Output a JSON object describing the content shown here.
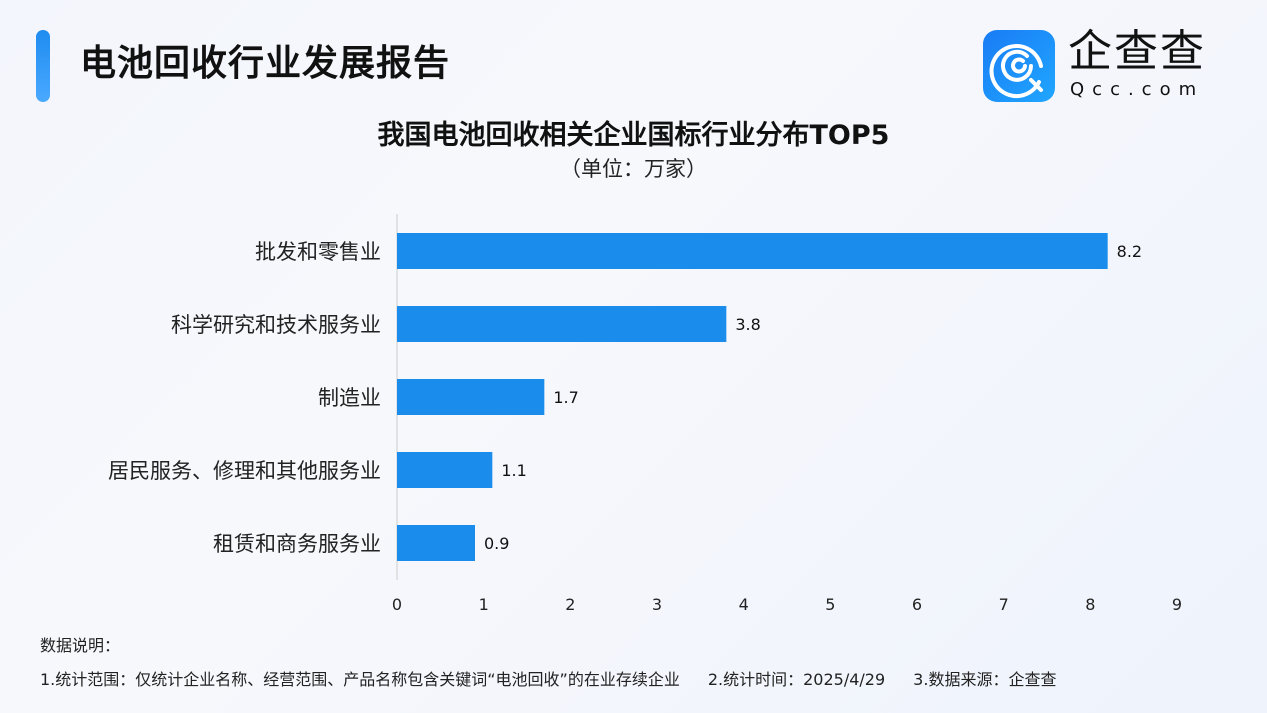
{
  "header": {
    "title": "电池回收行业发展报告",
    "logo_text": "企查查",
    "logo_sub": "Qcc.com"
  },
  "chart_data": {
    "type": "bar",
    "orientation": "horizontal",
    "title": "我国电池回收相关企业国标行业分布TOP5",
    "subtitle": "（单位：万家）",
    "categories": [
      "批发和零售业",
      "科学研究和技术服务业",
      "制造业",
      "居民服务、修理和其他服务业",
      "租赁和商务服务业"
    ],
    "values": [
      8.2,
      3.8,
      1.7,
      1.1,
      0.9
    ],
    "value_labels": [
      "8.2",
      "3.8",
      "1.7",
      "1.1",
      "0.9"
    ],
    "xlim": [
      0,
      9
    ],
    "ticks": [
      "0",
      "1",
      "2",
      "3",
      "4",
      "5",
      "6",
      "7",
      "8",
      "9"
    ],
    "bar_color": "#1a8ceb",
    "grid": false
  },
  "footer": {
    "heading": "数据说明：",
    "note1": "1.统计范围：仅统计企业名称、经营范围、产品名称包含关键词“电池回收”的在业存续企业",
    "note2": "2.统计时间：2025/4/29",
    "note3": "3.数据来源：企查查"
  }
}
